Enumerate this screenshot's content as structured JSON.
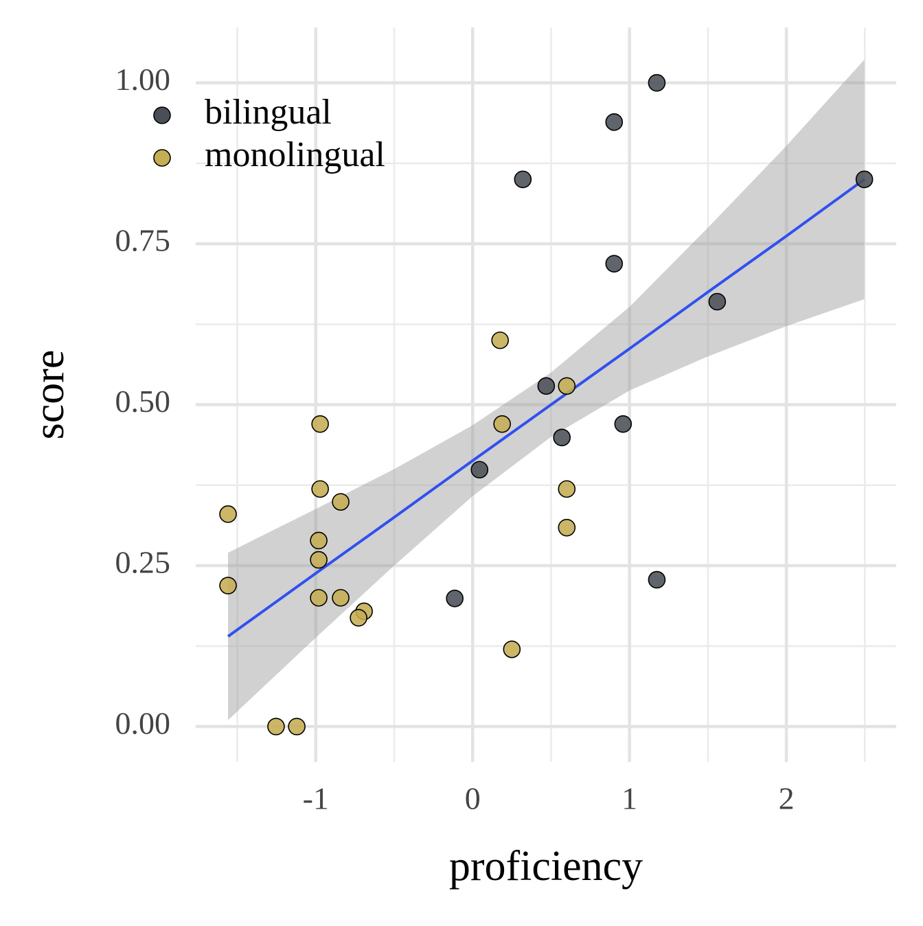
{
  "chart_data": {
    "type": "scatter",
    "x_label": "proficiency",
    "y_label": "score",
    "xlim": [
      -1.765,
      2.7
    ],
    "ylim": [
      -0.055,
      1.086
    ],
    "xticks": [
      -1,
      0,
      1,
      2
    ],
    "yticks": [
      {
        "value": 0,
        "label": "0.00"
      },
      {
        "value": 0.25,
        "label": "0.25"
      },
      {
        "value": 0.5,
        "label": "0.50"
      },
      {
        "value": 0.75,
        "label": "0.75"
      },
      {
        "value": 1,
        "label": "1.00"
      }
    ],
    "x_minor_ticks": [
      -1.5,
      -0.5,
      0.5,
      1.5,
      2.5
    ],
    "y_minor_ticks": [
      0.125,
      0.375,
      0.625,
      0.875
    ],
    "grid": true,
    "legend": "top-left",
    "series": [
      {
        "name": "bilingual",
        "color": "#4a4e57",
        "x": [
          1.174,
          0.902,
          0.32,
          2.497,
          0.902,
          1.559,
          0.469,
          0.959,
          0.569,
          0.044,
          -0.114,
          1.174
        ],
        "values": [
          1.0,
          0.939,
          0.85,
          0.85,
          0.719,
          0.66,
          0.529,
          0.47,
          0.449,
          0.399,
          0.199,
          0.228
        ]
      },
      {
        "name": "monolingual",
        "color": "#c4ad52",
        "x": [
          0.175,
          0.6,
          0.188,
          -0.972,
          -0.972,
          -0.841,
          0.6,
          0.6,
          -1.559,
          -0.981,
          -0.981,
          -1.559,
          -0.981,
          -0.841,
          -0.692,
          -0.727,
          0.25,
          -1.253,
          -1.121
        ],
        "values": [
          0.6,
          0.529,
          0.47,
          0.47,
          0.369,
          0.349,
          0.369,
          0.309,
          0.33,
          0.289,
          0.259,
          0.219,
          0.2,
          0.2,
          0.179,
          0.169,
          0.12,
          0.0,
          0.0
        ]
      }
    ],
    "fit": {
      "color": "#3050f0",
      "band_color": "#999999",
      "x": [
        -1.559,
        -1,
        -0.5,
        0,
        0.5,
        1,
        1.5,
        2,
        2.497
      ],
      "values": [
        0.14,
        0.238,
        0.325,
        0.413,
        0.5,
        0.587,
        0.675,
        0.762,
        0.85
      ],
      "lower": [
        0.01,
        0.138,
        0.25,
        0.358,
        0.45,
        0.522,
        0.575,
        0.622,
        0.664
      ],
      "upper": [
        0.27,
        0.338,
        0.4,
        0.468,
        0.55,
        0.652,
        0.775,
        0.902,
        1.036
      ]
    }
  }
}
